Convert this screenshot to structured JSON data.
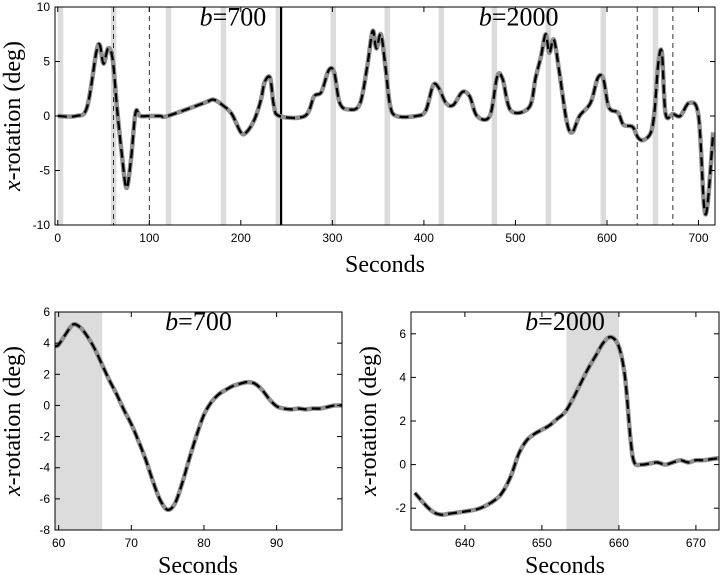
{
  "chart_data": [
    {
      "type": "line",
      "xlabel": "Seconds",
      "ylabel_prefix": "x",
      "ylabel_rest": "-rotation (deg)",
      "xlim": [
        -3,
        718
      ],
      "ylim": [
        -10,
        10
      ],
      "xticks": [
        0,
        100,
        200,
        300,
        400,
        500,
        600,
        700
      ],
      "yticks": [
        -10,
        -5,
        0,
        5,
        10
      ],
      "annotations": [
        {
          "var": "b",
          "text": "=700",
          "x": 155,
          "y": 8.3
        },
        {
          "var": "b",
          "text": "=2000",
          "x": 460,
          "y": 8.3
        }
      ],
      "shaded_bands": [
        [
          0,
          6
        ],
        [
          58,
          64
        ],
        [
          118,
          124
        ],
        [
          178,
          184
        ],
        [
          238,
          244
        ],
        [
          298,
          304
        ],
        [
          357,
          363
        ],
        [
          416,
          422
        ],
        [
          474,
          480
        ],
        [
          533,
          539
        ],
        [
          593,
          599
        ],
        [
          650,
          656
        ]
      ],
      "dashed_vlines": [
        61,
        100,
        633,
        672
      ],
      "solid_vline": 244,
      "series": [
        {
          "role": "estimate",
          "color": "#000000",
          "style": "dashed",
          "points": [
            [
              0,
              0
            ],
            [
              20,
              0
            ],
            [
              32,
              0.8
            ],
            [
              42,
              5.8
            ],
            [
              46,
              6.5
            ],
            [
              50,
              4.8
            ],
            [
              55,
              6.2
            ],
            [
              60,
              5.2
            ],
            [
              65,
              0.5
            ],
            [
              70,
              -3.5
            ],
            [
              75,
              -6.6
            ],
            [
              80,
              -4
            ],
            [
              85,
              0.3
            ],
            [
              90,
              0
            ],
            [
              100,
              0
            ],
            [
              112,
              0
            ],
            [
              120,
              0
            ],
            [
              160,
              1.2
            ],
            [
              170,
              1.5
            ],
            [
              180,
              1.0
            ],
            [
              190,
              0.2
            ],
            [
              200,
              -1.5
            ],
            [
              206,
              -1.5
            ],
            [
              215,
              -0.3
            ],
            [
              222,
              1.5
            ],
            [
              226,
              3.1
            ],
            [
              232,
              3.5
            ],
            [
              236,
              1.0
            ],
            [
              242,
              0
            ],
            [
              270,
              0
            ],
            [
              280,
              1.8
            ],
            [
              288,
              2.2
            ],
            [
              296,
              4.2
            ],
            [
              302,
              4.0
            ],
            [
              308,
              1.2
            ],
            [
              318,
              0.6
            ],
            [
              330,
              1.1
            ],
            [
              338,
              4.5
            ],
            [
              344,
              7.8
            ],
            [
              348,
              6.2
            ],
            [
              353,
              7.5
            ],
            [
              358,
              4.5
            ],
            [
              363,
              1.0
            ],
            [
              370,
              0
            ],
            [
              392,
              0
            ],
            [
              402,
              0.5
            ],
            [
              410,
              2.8
            ],
            [
              416,
              2.6
            ],
            [
              424,
              1.2
            ],
            [
              432,
              1.0
            ],
            [
              442,
              2.2
            ],
            [
              450,
              1.8
            ],
            [
              458,
              0
            ],
            [
              472,
              0
            ],
            [
              480,
              3.6
            ],
            [
              486,
              3.4
            ],
            [
              495,
              0.5
            ],
            [
              515,
              0.8
            ],
            [
              522,
              3.5
            ],
            [
              528,
              5.5
            ],
            [
              533,
              7.5
            ],
            [
              537,
              5.8
            ],
            [
              542,
              7.0
            ],
            [
              548,
              4.0
            ],
            [
              556,
              -0.5
            ],
            [
              562,
              -1.5
            ],
            [
              570,
              0
            ],
            [
              582,
              1.2
            ],
            [
              590,
              3.5
            ],
            [
              596,
              3.4
            ],
            [
              602,
              0.8
            ],
            [
              612,
              0.3
            ],
            [
              618,
              -0.8
            ],
            [
              628,
              -1.0
            ],
            [
              634,
              -2.0
            ],
            [
              640,
              -2.2
            ],
            [
              648,
              -1.5
            ],
            [
              652,
              0.5
            ],
            [
              656,
              4.8
            ],
            [
              660,
              5.8
            ],
            [
              664,
              0.2
            ],
            [
              672,
              0.2
            ],
            [
              680,
              0
            ],
            [
              690,
              1.2
            ],
            [
              700,
              0
            ],
            [
              706,
              -8.2
            ],
            [
              710,
              -8.0
            ],
            [
              716,
              -1.5
            ]
          ]
        },
        {
          "role": "reference",
          "color": "#8f8f8f",
          "style": "solid"
        }
      ]
    },
    {
      "type": "line",
      "xlabel": "Seconds",
      "ylabel_prefix": "x",
      "ylabel_rest": "-rotation (deg)",
      "title_var": "b",
      "title_rest": "=700",
      "xlim": [
        59.5,
        99
      ],
      "ylim": [
        -8,
        6
      ],
      "xticks": [
        60,
        70,
        80,
        90
      ],
      "yticks": [
        -8,
        -6,
        -4,
        -2,
        0,
        2,
        4,
        6
      ],
      "shaded_bands": [
        [
          59.5,
          66
        ]
      ],
      "series": [
        {
          "role": "estimate",
          "color": "#000000",
          "style": "dashed",
          "points": [
            [
              59.5,
              3.8
            ],
            [
              60,
              3.9
            ],
            [
              61,
              4.6
            ],
            [
              62,
              5.2
            ],
            [
              63,
              5.0
            ],
            [
              64,
              4.4
            ],
            [
              65,
              3.6
            ],
            [
              66,
              2.6
            ],
            [
              67,
              1.6
            ],
            [
              68,
              0.7
            ],
            [
              69,
              -0.3
            ],
            [
              70,
              -1.2
            ],
            [
              71,
              -2.3
            ],
            [
              72,
              -3.5
            ],
            [
              73,
              -4.9
            ],
            [
              74,
              -6.1
            ],
            [
              75,
              -6.7
            ],
            [
              76,
              -6.3
            ],
            [
              77,
              -5.0
            ],
            [
              78,
              -3.4
            ],
            [
              79,
              -1.9
            ],
            [
              80,
              -0.6
            ],
            [
              81,
              0.2
            ],
            [
              82,
              0.7
            ],
            [
              83,
              1.0
            ],
            [
              84,
              1.25
            ],
            [
              85,
              1.4
            ],
            [
              86,
              1.5
            ],
            [
              87,
              1.4
            ],
            [
              88,
              1.0
            ],
            [
              89,
              0.4
            ],
            [
              90,
              -0.05
            ],
            [
              91,
              -0.2
            ],
            [
              92,
              -0.25
            ],
            [
              93,
              -0.2
            ],
            [
              94,
              -0.25
            ],
            [
              95,
              -0.2
            ],
            [
              96,
              -0.2
            ],
            [
              97,
              -0.1
            ],
            [
              98,
              0.0
            ],
            [
              99,
              0.0
            ]
          ]
        },
        {
          "role": "reference",
          "color": "#8f8f8f",
          "style": "solid"
        }
      ]
    },
    {
      "type": "line",
      "xlabel": "Seconds",
      "ylabel_prefix": "x",
      "ylabel_rest": "-rotation (deg)",
      "title_var": "b",
      "title_rest": "=2000",
      "xlim": [
        633,
        673
      ],
      "ylim": [
        -3,
        7
      ],
      "xticks": [
        640,
        650,
        660,
        670
      ],
      "yticks": [
        -2,
        0,
        2,
        4,
        6
      ],
      "shaded_bands": [
        [
          653.2,
          660
        ]
      ],
      "series": [
        {
          "role": "estimate",
          "color": "#000000",
          "style": "dashed",
          "points": [
            [
              633.5,
              -1.3
            ],
            [
              635,
              -1.9
            ],
            [
              636,
              -2.2
            ],
            [
              637,
              -2.3
            ],
            [
              638,
              -2.25
            ],
            [
              640,
              -2.15
            ],
            [
              642,
              -2.0
            ],
            [
              644,
              -1.6
            ],
            [
              645,
              -1.2
            ],
            [
              646,
              -0.5
            ],
            [
              647,
              0.5
            ],
            [
              648,
              1.1
            ],
            [
              649,
              1.4
            ],
            [
              650,
              1.6
            ],
            [
              651,
              1.8
            ],
            [
              652,
              2.1
            ],
            [
              653,
              2.4
            ],
            [
              654,
              3.0
            ],
            [
              655,
              3.7
            ],
            [
              656,
              4.4
            ],
            [
              657,
              5.0
            ],
            [
              658,
              5.6
            ],
            [
              659,
              5.85
            ],
            [
              660,
              5.4
            ],
            [
              660.8,
              4.0
            ],
            [
              661.5,
              1.2
            ],
            [
              662,
              0.1
            ],
            [
              663,
              0.0
            ],
            [
              664,
              0.05
            ],
            [
              665,
              0.1
            ],
            [
              666,
              0.0
            ],
            [
              667,
              0.1
            ],
            [
              668,
              0.2
            ],
            [
              669,
              0.1
            ],
            [
              670,
              0.2
            ],
            [
              671,
              0.2
            ],
            [
              672,
              0.25
            ],
            [
              673,
              0.3
            ]
          ]
        },
        {
          "role": "reference",
          "color": "#8f8f8f",
          "style": "solid"
        }
      ]
    }
  ]
}
